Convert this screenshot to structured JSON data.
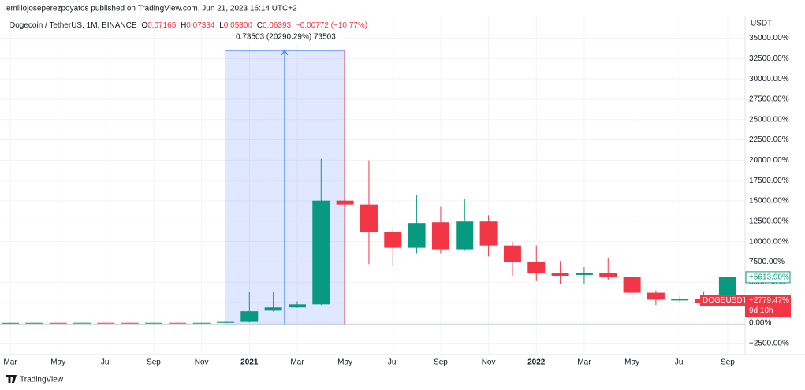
{
  "header": "emiliojoseperezpoyatos published on TradingView.com, Jun 21, 2023 16:14 UTC+2",
  "legend": {
    "symbol": "Dogecoin / TetherUS, 1M, BINANCE",
    "o": "O",
    "open": "0.07165",
    "h": "H",
    "high": "0.07334",
    "l": "L",
    "low": "0.05300",
    "c": "C",
    "close": "0.06393",
    "change": "−0.00772 (−10.77%)"
  },
  "measure_label": "0.73503 (20290.29%) 73503",
  "footer": "TradingView",
  "chart_data": {
    "type": "candlestick",
    "y_axis_title": "USDT",
    "categories": [
      "Mar",
      null,
      "May",
      null,
      "Jul",
      null,
      "Sep",
      null,
      "Nov",
      null,
      "2021",
      null,
      "Mar",
      null,
      "May",
      null,
      "Jul",
      null,
      "Sep",
      null,
      "Nov",
      null,
      "2022",
      null,
      "Mar",
      null,
      "May",
      null,
      "Jul",
      null,
      "Sep"
    ],
    "open": [
      0,
      5,
      10,
      8,
      15,
      12,
      10,
      12,
      8,
      10,
      120,
      1500,
      1900,
      2280,
      15030,
      14550,
      11220,
      9225,
      12360,
      9035,
      12460,
      9510,
      7510,
      6180,
      5900,
      6090,
      5610,
      3710,
      2760,
      2950,
      2470
    ],
    "high": [
      35,
      40,
      38,
      45,
      42,
      40,
      42,
      38,
      40,
      200,
      3804,
      3804,
      2660,
      20160,
      15100,
      19970,
      11510,
      15690,
      14270,
      15220,
      13220,
      9990,
      9510,
      7610,
      6850,
      7990,
      6090,
      3995,
      3330,
      3900,
      5700
    ],
    "low": [
      -20,
      -15,
      -10,
      -12,
      -5,
      -8,
      -10,
      -8,
      -12,
      0,
      60,
      1400,
      1850,
      2200,
      9415,
      7230,
      7040,
      8560,
      8560,
      8940,
      8180,
      5800,
      5135,
      4755,
      4850,
      5325,
      2950,
      2190,
      2570,
      2380,
      2300
    ],
    "close": [
      5,
      10,
      8,
      15,
      12,
      10,
      12,
      8,
      10,
      120,
      1427,
      1900,
      2280,
      15030,
      14550,
      11220,
      9225,
      12270,
      9035,
      12460,
      9510,
      7510,
      6180,
      5800,
      6090,
      5610,
      3710,
      2850,
      2950,
      2470,
      5614
    ],
    "up_color": "#089981",
    "down_color": "#f23645",
    "ylim": [
      -3500,
      36500
    ],
    "yticks": [
      {
        "value": -2500,
        "label": "−2500.00%"
      },
      {
        "value": 0,
        "label": "0.00%"
      },
      {
        "value": 2500,
        "label": "2500.00%"
      },
      {
        "value": 5000,
        "label": "5000.00%"
      },
      {
        "value": 7500,
        "label": "7500.00%"
      },
      {
        "value": 10000,
        "label": "10000.00%"
      },
      {
        "value": 12500,
        "label": "12500.00%"
      },
      {
        "value": 15000,
        "label": "15000.00%"
      },
      {
        "value": 17500,
        "label": "17500.00%"
      },
      {
        "value": 20000,
        "label": "20000.00%"
      },
      {
        "value": 22500,
        "label": "22500.00%"
      },
      {
        "value": 25000,
        "label": "25000.00%"
      },
      {
        "value": 27500,
        "label": "27500.00%"
      },
      {
        "value": 30000,
        "label": "30000.00%"
      },
      {
        "value": 32500,
        "label": "32500.00%"
      },
      {
        "value": 35000,
        "label": "35000.00%"
      }
    ],
    "grid": true,
    "price_labels": [
      {
        "value": 5613.9,
        "label": "+5613.90%",
        "color": "#089981"
      },
      {
        "value": 2779.47,
        "label": "+2779.47%",
        "name": "DOGEUSDT",
        "countdown": "9d 10h",
        "color": "#f23645"
      }
    ]
  }
}
